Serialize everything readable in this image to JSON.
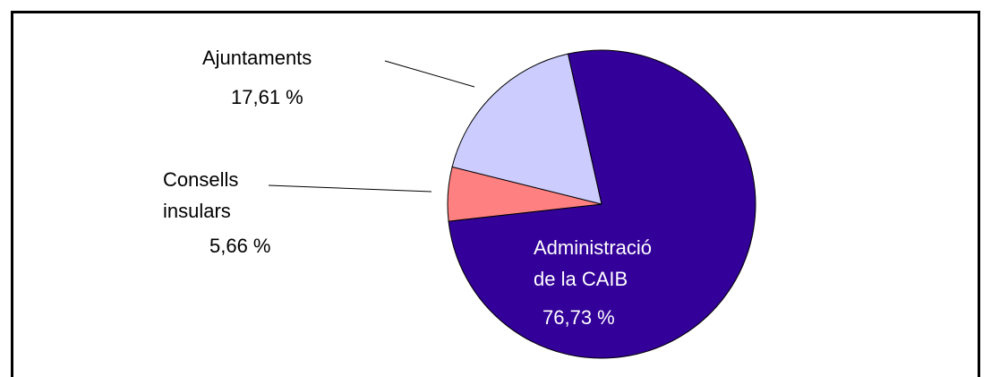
{
  "chart_data": {
    "type": "pie",
    "categories": [
      "Administració de la CAIB",
      "Consells insulars",
      "Ajuntaments"
    ],
    "values": [
      76.73,
      5.66,
      17.61
    ],
    "value_labels": [
      "76,73 %",
      "5,66 %",
      "17,61 %"
    ],
    "colors": [
      "#330099",
      "#ff8080",
      "#ccccff"
    ]
  }
}
